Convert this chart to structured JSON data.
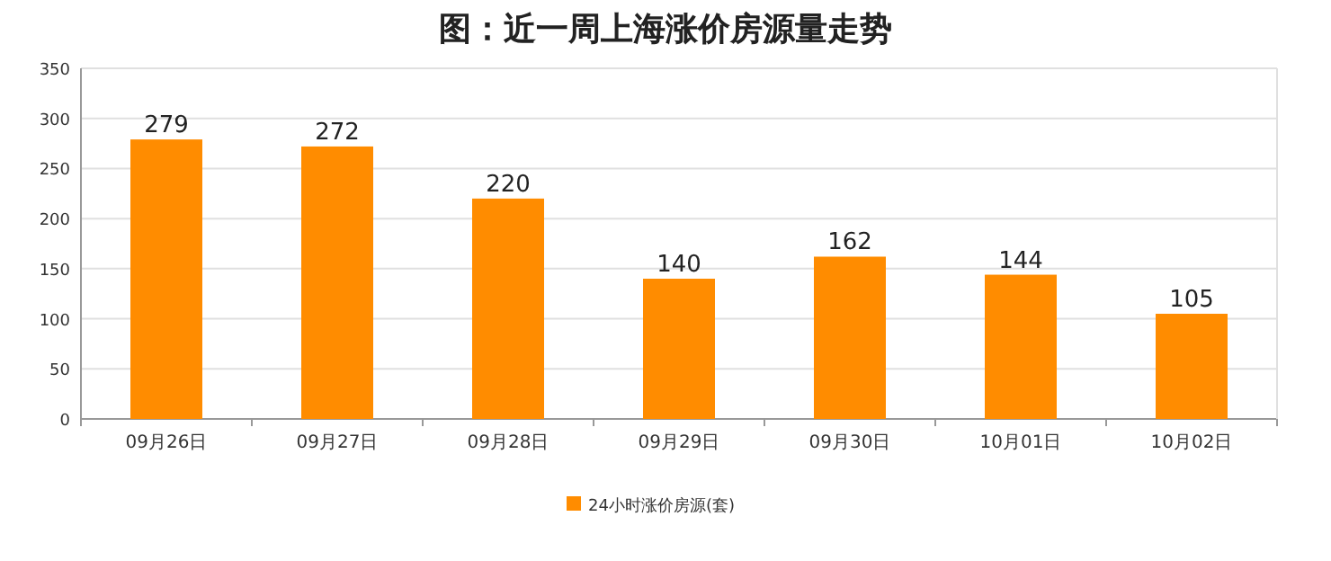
{
  "chart_data": {
    "type": "bar",
    "title": "图：近一周上海涨价房源量走势",
    "categories": [
      "09月26日",
      "09月27日",
      "09月28日",
      "09月29日",
      "09月30日",
      "10月01日",
      "10月02日"
    ],
    "series": [
      {
        "name": "24小时涨价房源(套)",
        "color": "#ff8c00",
        "values": [
          279,
          272,
          220,
          140,
          162,
          144,
          105
        ]
      }
    ],
    "ylim": [
      0,
      350
    ],
    "yticks": [
      0,
      50,
      100,
      150,
      200,
      250,
      300,
      350
    ],
    "grid": "y",
    "legend": "bottom",
    "data_labels": true
  }
}
